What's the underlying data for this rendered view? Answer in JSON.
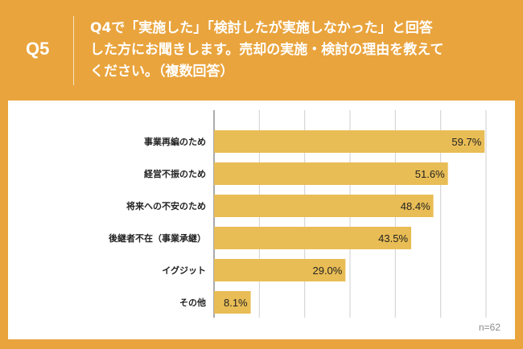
{
  "header": {
    "qnum": "Q5",
    "line1": "Q4で「実施した」「検討したが実施しなかった」と回答",
    "line2": "した方にお聞きします。売却の実施・検討の理由を教えて",
    "line3": "ください。（複数回答）"
  },
  "note": "n=62",
  "colors": {
    "accent": "#e9a43d",
    "bar": "#e9bd55",
    "grid": "#cfcfcf"
  },
  "chart_data": {
    "type": "bar",
    "orientation": "horizontal",
    "categories": [
      "事業再編のため",
      "経営不振のため",
      "将来への不安のため",
      "後継者不在（事業承継）",
      "イグジット",
      "その他"
    ],
    "values": [
      59.7,
      51.6,
      48.4,
      43.5,
      29.0,
      8.1
    ],
    "value_labels": [
      "59.7%",
      "51.6%",
      "48.4%",
      "43.5%",
      "29.0%",
      "8.1%"
    ],
    "xlim": [
      0,
      60
    ],
    "grid": true
  }
}
